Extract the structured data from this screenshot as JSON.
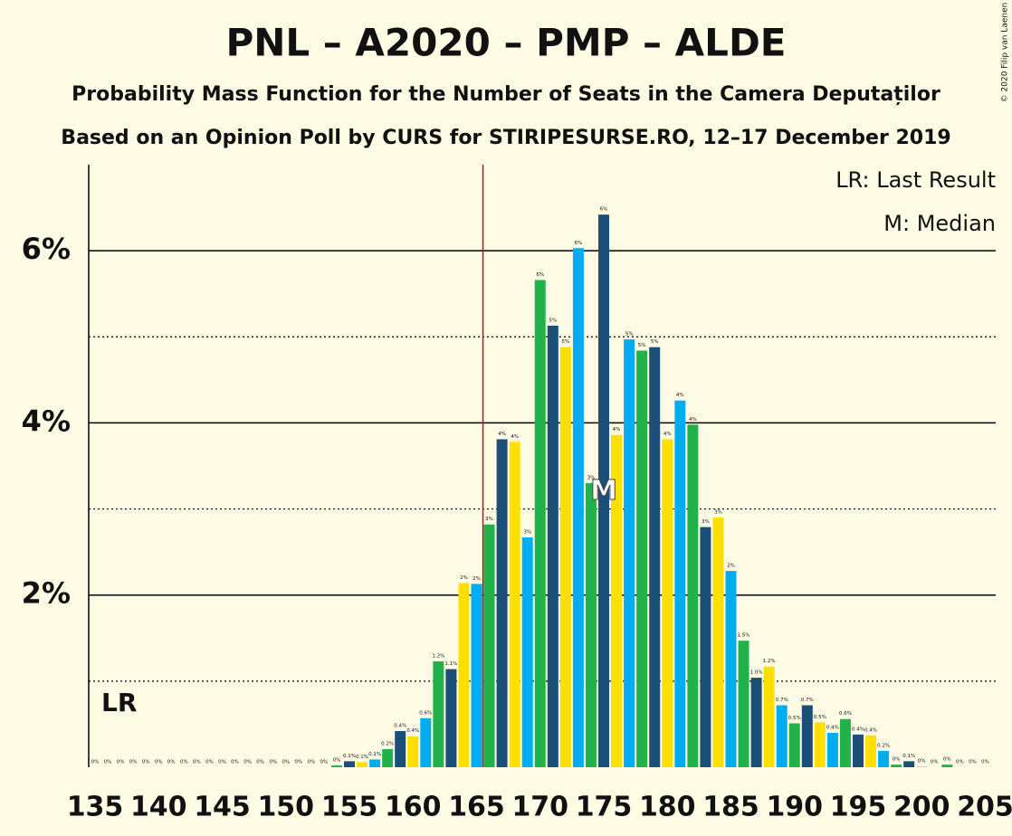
{
  "chart_data": {
    "type": "bar",
    "title": "PNL – A2020 – PMP – ALDE",
    "subtitle": "Probability Mass Function for the Number of Seats in the Camera Deputaților",
    "subtitle2": "Based on an Opinion Poll by CURS for STIRIPESURSE.RO, 12–17 December 2019",
    "copyright": "© 2020 Filip van Laenen",
    "legend": [
      "LR: Last Result",
      "M: Median"
    ],
    "last_result": 166,
    "last_result_label": "LR",
    "median": 175,
    "median_label": "M",
    "colors": [
      "#22b24c",
      "#1b4f78",
      "#ffdf00",
      "#00aeef"
    ],
    "color_start": 166,
    "categories": [
      135,
      136,
      137,
      138,
      139,
      140,
      141,
      142,
      143,
      144,
      145,
      146,
      147,
      148,
      149,
      150,
      151,
      152,
      153,
      154,
      155,
      156,
      157,
      158,
      159,
      160,
      161,
      162,
      163,
      164,
      165,
      166,
      167,
      168,
      169,
      170,
      171,
      172,
      173,
      174,
      175,
      176,
      177,
      178,
      179,
      180,
      181,
      182,
      183,
      184,
      185,
      186,
      187,
      188,
      189,
      190,
      191,
      192,
      193,
      194,
      195,
      196,
      197,
      198,
      199,
      200,
      201,
      202,
      203,
      204,
      205
    ],
    "values": [
      0,
      0,
      0,
      0,
      0,
      0,
      0,
      0,
      0,
      0,
      0,
      0,
      0,
      0,
      0,
      0,
      0,
      0,
      0,
      0.02,
      0.07,
      0.06,
      0.09,
      0.21,
      0.42,
      0.36,
      0.57,
      1.23,
      1.14,
      2.14,
      2.13,
      2.82,
      3.81,
      3.78,
      2.67,
      5.66,
      5.13,
      4.88,
      6.03,
      3.3,
      6.42,
      3.86,
      4.97,
      4.84,
      4.88,
      3.81,
      4.26,
      3.98,
      2.79,
      2.9,
      2.28,
      1.47,
      1.04,
      1.17,
      0.72,
      0.51,
      0.72,
      0.52,
      0.4,
      0.56,
      0.38,
      0.37,
      0.19,
      0.03,
      0.07,
      0.01,
      0,
      0.03,
      0,
      0,
      0
    ],
    "value_labels": [
      "0%",
      "0%",
      "0%",
      "0%",
      "0%",
      "0%",
      "0%",
      "0%",
      "0%",
      "0%",
      "0%",
      "0%",
      "0%",
      "0%",
      "0%",
      "0%",
      "0%",
      "0%",
      "0%",
      "0%",
      "0.1%",
      "0.1%",
      "0.1%",
      "0.2%",
      "0.4%",
      "0.4%",
      "0.6%",
      "1.2%",
      "1.1%",
      "2%",
      "2%",
      "3%",
      "4%",
      "4%",
      "3%",
      "6%",
      "5%",
      "5%",
      "6%",
      "3%",
      "6%",
      "4%",
      "5%",
      "5%",
      "5%",
      "4%",
      "4%",
      "4%",
      "3%",
      "3%",
      "2%",
      "1.5%",
      "1.0%",
      "1.2%",
      "0.7%",
      "0.5%",
      "0.7%",
      "0.5%",
      "0.4%",
      "0.6%",
      "0.4%",
      "0.4%",
      "0.2%",
      "0%",
      "0.1%",
      "0%",
      "0%",
      "0%",
      "0%",
      "0%",
      "0%"
    ],
    "xticks": [
      135,
      140,
      145,
      150,
      155,
      160,
      165,
      170,
      175,
      180,
      185,
      190,
      195,
      200,
      205
    ],
    "ylim": [
      0,
      7
    ],
    "yticks": [
      {
        "value": 2,
        "label": "2%"
      },
      {
        "value": 4,
        "label": "4%"
      },
      {
        "value": 6,
        "label": "6%"
      }
    ],
    "minor_yticks": [
      1,
      3,
      5
    ],
    "grid": true
  }
}
